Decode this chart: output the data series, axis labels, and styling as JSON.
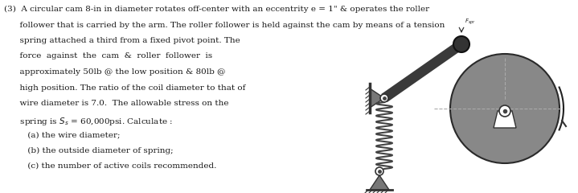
{
  "background_color": "#ffffff",
  "text_lines": [
    [
      "(3)",
      0.01,
      "bold"
    ],
    [
      "  A circular cam 8-in in diameter rotates off-center with an eccentrity e = 1\" & operates the roller",
      0.01,
      "normal"
    ],
    [
      "  follower that is carried by the arm. The roller follower is held against the cam by means of a tension",
      0.01,
      "normal"
    ],
    [
      "  spring attached a third from a fixed pivot point. The",
      0.01,
      "normal"
    ],
    [
      "  force  against  the  cam  &  roller  follower  is",
      0.01,
      "normal"
    ],
    [
      "  approximately 50lb @ the low position & 80lb @",
      0.01,
      "normal"
    ],
    [
      "  high position. The ratio of the coil diameter to that of",
      0.01,
      "normal"
    ],
    [
      "  wire diameter is 7.0.  The allowable stress on the",
      0.01,
      "normal"
    ],
    [
      "  spring is Sₛ = 60,000psi. Calculate :",
      0.01,
      "normal"
    ],
    [
      "    (a) the wire diameter;",
      0.01,
      "normal"
    ],
    [
      "    (b) the outside diameter of spring;",
      0.01,
      "normal"
    ],
    [
      "    (c) the number of active coils recommended.",
      0.01,
      "normal"
    ]
  ],
  "font_size": 7.5,
  "font_family": "DejaVu Serif",
  "text_color": "#1a1a1a",
  "arm_color": "#3a3a3a",
  "cam_color": "#888888",
  "spring_color": "#444444",
  "support_color": "#777777"
}
